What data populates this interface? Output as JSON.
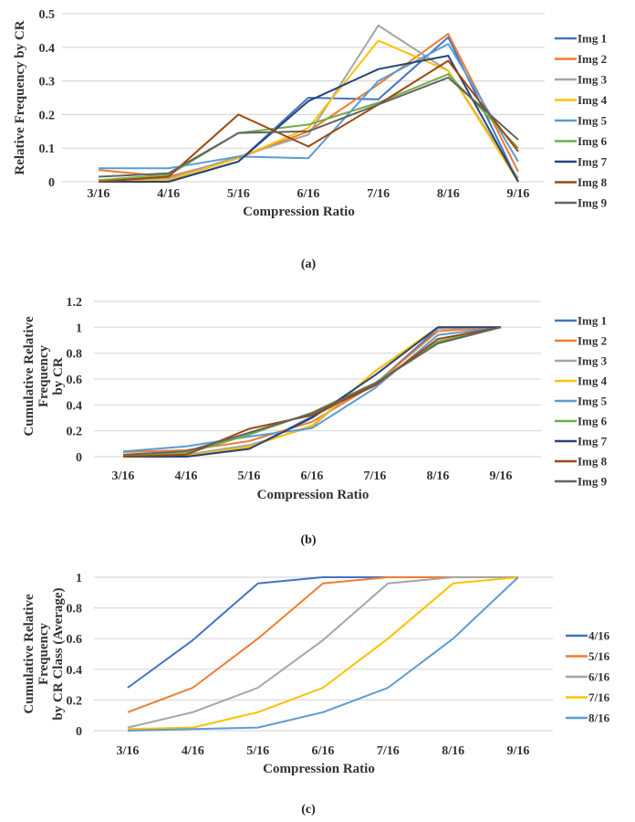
{
  "chart_data": [
    {
      "id": "a",
      "type": "line",
      "caption": "(a)",
      "xlabel": "Compression Ratio",
      "ylabel": "Relative Frequency by CR",
      "ylim": [
        0,
        0.5
      ],
      "yticks": [
        0,
        0.1,
        0.2,
        0.3,
        0.4,
        0.5
      ],
      "ytick_labels": [
        "0",
        "0.1",
        "0.2",
        "0.3",
        "0.4",
        "0.5"
      ],
      "grid": true,
      "legend_position": "right",
      "categories": [
        "3/16",
        "4/16",
        "5/16",
        "6/16",
        "7/16",
        "8/16",
        "9/16"
      ],
      "series": [
        {
          "name": "Img 1",
          "color": "#4472C4",
          "values": [
            0.0,
            0.0,
            0.06,
            0.25,
            0.245,
            0.43,
            0.0
          ]
        },
        {
          "name": "Img 2",
          "color": "#ED7D31",
          "values": [
            0.035,
            0.015,
            0.07,
            0.15,
            0.29,
            0.44,
            0.03
          ]
        },
        {
          "name": "Img 3",
          "color": "#A5A5A5",
          "values": [
            0.005,
            0.01,
            0.075,
            0.14,
            0.465,
            0.33,
            0.01
          ]
        },
        {
          "name": "Img 4",
          "color": "#FFC000",
          "values": [
            0.0,
            0.005,
            0.07,
            0.16,
            0.42,
            0.33,
            0.0
          ]
        },
        {
          "name": "Img 5",
          "color": "#5B9BD5",
          "values": [
            0.04,
            0.04,
            0.075,
            0.07,
            0.3,
            0.41,
            0.06
          ]
        },
        {
          "name": "Img 6",
          "color": "#70AD47",
          "values": [
            0.005,
            0.02,
            0.145,
            0.17,
            0.235,
            0.32,
            0.1
          ]
        },
        {
          "name": "Img 7",
          "color": "#264478",
          "values": [
            0.0,
            0.0,
            0.06,
            0.24,
            0.335,
            0.375,
            0.0
          ]
        },
        {
          "name": "Img 8",
          "color": "#9E480E",
          "values": [
            0.0,
            0.015,
            0.2,
            0.105,
            0.23,
            0.36,
            0.09
          ]
        },
        {
          "name": "Img 9",
          "color": "#636363",
          "values": [
            0.015,
            0.025,
            0.145,
            0.15,
            0.23,
            0.31,
            0.125
          ]
        }
      ]
    },
    {
      "id": "b",
      "type": "line",
      "caption": "(b)",
      "xlabel": "Compression Ratio",
      "ylabel": [
        "Cumulative Relative",
        "Frequency",
        "by CR"
      ],
      "ylim": [
        0,
        1.2
      ],
      "yticks": [
        0,
        0.2,
        0.4,
        0.6,
        0.8,
        1,
        1.2
      ],
      "ytick_labels": [
        "0",
        "0.2",
        "0.4",
        "0.6",
        "0.8",
        "1",
        "1.2"
      ],
      "grid": true,
      "legend_position": "right",
      "categories": [
        "3/16",
        "4/16",
        "5/16",
        "6/16",
        "7/16",
        "8/16",
        "9/16"
      ],
      "series": [
        {
          "name": "Img 1",
          "color": "#4472C4",
          "values": [
            0.0,
            0.0,
            0.06,
            0.31,
            0.56,
            0.99,
            1.0
          ]
        },
        {
          "name": "Img 2",
          "color": "#ED7D31",
          "values": [
            0.035,
            0.05,
            0.12,
            0.27,
            0.56,
            0.97,
            1.0
          ]
        },
        {
          "name": "Img 3",
          "color": "#A5A5A5",
          "values": [
            0.005,
            0.015,
            0.09,
            0.23,
            0.66,
            0.99,
            1.0
          ]
        },
        {
          "name": "Img 4",
          "color": "#FFC000",
          "values": [
            0.0,
            0.005,
            0.075,
            0.24,
            0.66,
            1.0,
            1.0
          ]
        },
        {
          "name": "Img 5",
          "color": "#5B9BD5",
          "values": [
            0.04,
            0.08,
            0.155,
            0.22,
            0.53,
            0.94,
            1.0
          ]
        },
        {
          "name": "Img 6",
          "color": "#70AD47",
          "values": [
            0.005,
            0.025,
            0.17,
            0.34,
            0.57,
            0.89,
            1.0
          ]
        },
        {
          "name": "Img 7",
          "color": "#264478",
          "values": [
            0.0,
            0.0,
            0.06,
            0.3,
            0.63,
            1.0,
            1.0
          ]
        },
        {
          "name": "Img 8",
          "color": "#9E480E",
          "values": [
            0.0,
            0.015,
            0.215,
            0.32,
            0.55,
            0.91,
            1.0
          ]
        },
        {
          "name": "Img 9",
          "color": "#636363",
          "values": [
            0.015,
            0.04,
            0.185,
            0.335,
            0.565,
            0.875,
            1.0
          ]
        }
      ]
    },
    {
      "id": "c",
      "type": "line",
      "caption": "(c)",
      "xlabel": "Compression Ratio",
      "ylabel": [
        "Cumulative Relative",
        "Frequency",
        "by CR Class (Average)"
      ],
      "ylim": [
        0,
        1
      ],
      "yticks": [
        0,
        0.2,
        0.4,
        0.6,
        0.8,
        1
      ],
      "ytick_labels": [
        "0",
        "0.2",
        "0.4",
        "0.6",
        "0.8",
        "1"
      ],
      "grid": true,
      "legend_position": "right",
      "categories": [
        "3/16",
        "4/16",
        "5/16",
        "6/16",
        "7/16",
        "8/16",
        "9/16"
      ],
      "series": [
        {
          "name": "4/16",
          "color": "#4472C4",
          "values": [
            0.28,
            0.59,
            0.96,
            1.0,
            1.0,
            1.0,
            1.0
          ]
        },
        {
          "name": "5/16",
          "color": "#ED7D31",
          "values": [
            0.12,
            0.28,
            0.6,
            0.96,
            1.0,
            1.0,
            1.0
          ]
        },
        {
          "name": "6/16",
          "color": "#A5A5A5",
          "values": [
            0.02,
            0.12,
            0.28,
            0.59,
            0.96,
            1.0,
            1.0
          ]
        },
        {
          "name": "7/16",
          "color": "#FFC000",
          "values": [
            0.01,
            0.02,
            0.12,
            0.28,
            0.6,
            0.96,
            1.0
          ]
        },
        {
          "name": "8/16",
          "color": "#5B9BD5",
          "values": [
            0.0,
            0.01,
            0.02,
            0.12,
            0.28,
            0.6,
            1.0
          ]
        }
      ]
    }
  ]
}
